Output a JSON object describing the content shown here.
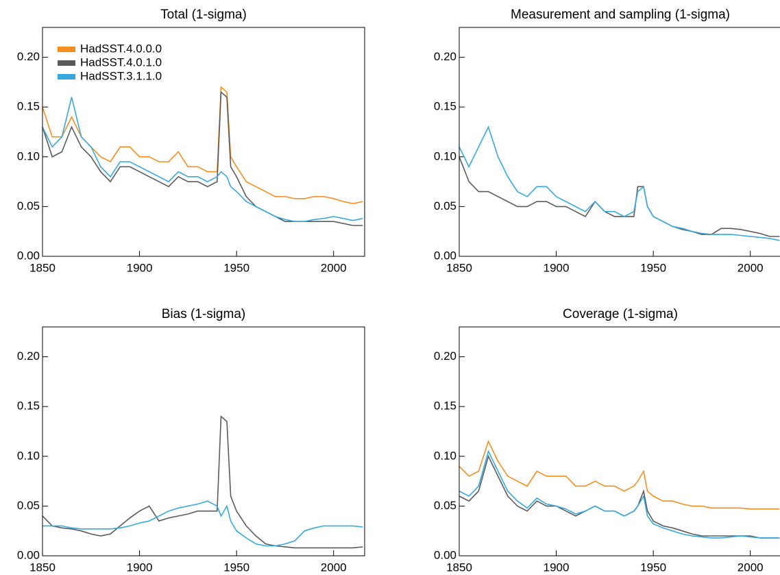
{
  "chart_data": [
    {
      "type": "line",
      "title": "Total (1-sigma)",
      "legend": "upper left",
      "x": [
        1850,
        1855,
        1860,
        1865,
        1870,
        1875,
        1880,
        1885,
        1890,
        1895,
        1900,
        1905,
        1910,
        1915,
        1920,
        1925,
        1930,
        1935,
        1940,
        1942,
        1945,
        1947,
        1950,
        1955,
        1960,
        1965,
        1970,
        1975,
        1980,
        1985,
        1990,
        1995,
        2000,
        2005,
        2010,
        2015
      ],
      "xlim": [
        1850,
        2016
      ],
      "xticks": [
        1850,
        1900,
        1950,
        2000
      ],
      "ylim": [
        0,
        0.23
      ],
      "yticks": [
        {
          "value": 0,
          "label": "0.00"
        },
        {
          "value": 0.05,
          "label": "0.05"
        },
        {
          "value": 0.1,
          "label": "0.10"
        },
        {
          "value": 0.15,
          "label": "0.15"
        },
        {
          "value": 0.2,
          "label": "0.20"
        }
      ],
      "series": [
        {
          "name": "HadSST.4.0.0.0",
          "color": "#f78d1e",
          "values": [
            0.15,
            0.12,
            0.12,
            0.14,
            0.12,
            0.11,
            0.1,
            0.095,
            0.11,
            0.11,
            0.1,
            0.1,
            0.095,
            0.095,
            0.105,
            0.09,
            0.09,
            0.085,
            0.085,
            0.17,
            0.165,
            0.1,
            0.09,
            0.075,
            0.07,
            0.065,
            0.06,
            0.06,
            0.058,
            0.058,
            0.06,
            0.06,
            0.058,
            0.055,
            0.053,
            0.055
          ]
        },
        {
          "name": "HadSST.4.0.1.0",
          "color": "#5a5a5a",
          "values": [
            0.13,
            0.1,
            0.105,
            0.13,
            0.11,
            0.1,
            0.085,
            0.075,
            0.09,
            0.09,
            0.085,
            0.08,
            0.075,
            0.07,
            0.08,
            0.075,
            0.075,
            0.07,
            0.075,
            0.165,
            0.16,
            0.09,
            0.08,
            0.06,
            0.05,
            0.045,
            0.04,
            0.035,
            0.035,
            0.035,
            0.035,
            0.035,
            0.035,
            0.033,
            0.031,
            0.031
          ]
        },
        {
          "name": "HadSST.3.1.1.0",
          "color": "#35a9df",
          "values": [
            0.13,
            0.11,
            0.12,
            0.16,
            0.12,
            0.11,
            0.09,
            0.08,
            0.095,
            0.095,
            0.09,
            0.085,
            0.08,
            0.075,
            0.085,
            0.08,
            0.08,
            0.075,
            0.08,
            0.085,
            0.08,
            0.07,
            0.065,
            0.055,
            0.05,
            0.045,
            0.04,
            0.037,
            0.035,
            0.035,
            0.037,
            0.038,
            0.04,
            0.038,
            0.036,
            0.038
          ]
        }
      ]
    },
    {
      "type": "line",
      "title": "Measurement and sampling (1-sigma)",
      "x": [
        1850,
        1855,
        1860,
        1865,
        1870,
        1875,
        1880,
        1885,
        1890,
        1895,
        1900,
        1905,
        1910,
        1915,
        1920,
        1925,
        1930,
        1935,
        1940,
        1942,
        1945,
        1947,
        1950,
        1955,
        1960,
        1965,
        1970,
        1975,
        1980,
        1985,
        1990,
        1995,
        2000,
        2005,
        2010,
        2015
      ],
      "xlim": [
        1850,
        2016
      ],
      "xticks": [
        1850,
        1900,
        1950,
        2000
      ],
      "ylim": [
        0,
        0.23
      ],
      "yticks": [
        {
          "value": 0,
          "label": "0.00"
        },
        {
          "value": 0.05,
          "label": "0.05"
        },
        {
          "value": 0.1,
          "label": "0.10"
        },
        {
          "value": 0.15,
          "label": "0.15"
        },
        {
          "value": 0.2,
          "label": "0.20"
        }
      ],
      "series": [
        {
          "color": "#5a5a5a",
          "values": [
            0.1,
            0.075,
            0.065,
            0.065,
            0.06,
            0.055,
            0.05,
            0.05,
            0.055,
            0.055,
            0.05,
            0.05,
            0.045,
            0.04,
            0.055,
            0.045,
            0.04,
            0.04,
            0.04,
            0.07,
            0.07,
            0.05,
            0.04,
            0.035,
            0.03,
            0.027,
            0.025,
            0.022,
            0.022,
            0.028,
            0.028,
            0.027,
            0.025,
            0.023,
            0.02,
            0.02
          ]
        },
        {
          "color": "#35a9df",
          "values": [
            0.11,
            0.09,
            0.11,
            0.13,
            0.1,
            0.08,
            0.065,
            0.06,
            0.07,
            0.07,
            0.06,
            0.055,
            0.05,
            0.045,
            0.055,
            0.045,
            0.045,
            0.04,
            0.045,
            0.065,
            0.07,
            0.05,
            0.04,
            0.035,
            0.03,
            0.028,
            0.025,
            0.023,
            0.022,
            0.022,
            0.022,
            0.021,
            0.02,
            0.019,
            0.018,
            0.016
          ]
        }
      ]
    },
    {
      "type": "line",
      "title": "Bias (1-sigma)",
      "x": [
        1850,
        1855,
        1860,
        1865,
        1870,
        1875,
        1880,
        1885,
        1890,
        1895,
        1900,
        1905,
        1910,
        1915,
        1920,
        1925,
        1930,
        1935,
        1940,
        1942,
        1945,
        1947,
        1950,
        1955,
        1960,
        1965,
        1970,
        1975,
        1980,
        1985,
        1990,
        1995,
        2000,
        2005,
        2010,
        2015
      ],
      "xlim": [
        1850,
        2016
      ],
      "xticks": [
        1850,
        1900,
        1950,
        2000
      ],
      "ylim": [
        0,
        0.23
      ],
      "yticks": [
        {
          "value": 0,
          "label": "0.00"
        },
        {
          "value": 0.05,
          "label": "0.05"
        },
        {
          "value": 0.1,
          "label": "0.10"
        },
        {
          "value": 0.15,
          "label": "0.15"
        },
        {
          "value": 0.2,
          "label": "0.20"
        }
      ],
      "series": [
        {
          "color": "#5a5a5a",
          "values": [
            0.04,
            0.03,
            0.028,
            0.027,
            0.025,
            0.022,
            0.02,
            0.022,
            0.03,
            0.038,
            0.045,
            0.05,
            0.035,
            0.038,
            0.04,
            0.042,
            0.045,
            0.045,
            0.045,
            0.14,
            0.135,
            0.06,
            0.045,
            0.03,
            0.02,
            0.012,
            0.01,
            0.009,
            0.008,
            0.008,
            0.008,
            0.008,
            0.008,
            0.008,
            0.008,
            0.009
          ]
        },
        {
          "color": "#35a9df",
          "values": [
            0.03,
            0.03,
            0.03,
            0.028,
            0.027,
            0.027,
            0.027,
            0.027,
            0.028,
            0.03,
            0.033,
            0.035,
            0.04,
            0.045,
            0.048,
            0.05,
            0.052,
            0.055,
            0.05,
            0.04,
            0.05,
            0.035,
            0.025,
            0.018,
            0.012,
            0.01,
            0.01,
            0.012,
            0.015,
            0.025,
            0.028,
            0.03,
            0.03,
            0.03,
            0.03,
            0.029
          ]
        }
      ]
    },
    {
      "type": "line",
      "title": "Coverage (1-sigma)",
      "x": [
        1850,
        1855,
        1860,
        1865,
        1870,
        1875,
        1880,
        1885,
        1890,
        1895,
        1900,
        1905,
        1910,
        1915,
        1920,
        1925,
        1930,
        1935,
        1940,
        1942,
        1945,
        1947,
        1950,
        1955,
        1960,
        1965,
        1970,
        1975,
        1980,
        1985,
        1990,
        1995,
        2000,
        2005,
        2010,
        2015
      ],
      "xlim": [
        1850,
        2016
      ],
      "xticks": [
        1850,
        1900,
        1950,
        2000
      ],
      "ylim": [
        0,
        0.23
      ],
      "yticks": [
        {
          "value": 0,
          "label": "0.00"
        },
        {
          "value": 0.05,
          "label": "0.05"
        },
        {
          "value": 0.1,
          "label": "0.10"
        },
        {
          "value": 0.15,
          "label": "0.15"
        },
        {
          "value": 0.2,
          "label": "0.20"
        }
      ],
      "series": [
        {
          "color": "#f78d1e",
          "values": [
            0.09,
            0.08,
            0.085,
            0.115,
            0.095,
            0.08,
            0.075,
            0.07,
            0.085,
            0.08,
            0.08,
            0.08,
            0.07,
            0.07,
            0.075,
            0.07,
            0.07,
            0.065,
            0.07,
            0.075,
            0.085,
            0.065,
            0.06,
            0.055,
            0.055,
            0.052,
            0.05,
            0.05,
            0.048,
            0.048,
            0.048,
            0.048,
            0.047,
            0.047,
            0.047,
            0.047
          ]
        },
        {
          "color": "#5a5a5a",
          "values": [
            0.06,
            0.055,
            0.065,
            0.1,
            0.08,
            0.06,
            0.05,
            0.045,
            0.055,
            0.05,
            0.05,
            0.045,
            0.04,
            0.045,
            0.05,
            0.045,
            0.045,
            0.04,
            0.045,
            0.05,
            0.065,
            0.045,
            0.035,
            0.03,
            0.028,
            0.025,
            0.022,
            0.02,
            0.02,
            0.02,
            0.02,
            0.02,
            0.02,
            0.018,
            0.018,
            0.018
          ]
        },
        {
          "color": "#35a9df",
          "values": [
            0.065,
            0.06,
            0.07,
            0.105,
            0.085,
            0.065,
            0.055,
            0.048,
            0.058,
            0.052,
            0.05,
            0.047,
            0.042,
            0.045,
            0.05,
            0.045,
            0.045,
            0.04,
            0.045,
            0.05,
            0.06,
            0.04,
            0.032,
            0.028,
            0.025,
            0.022,
            0.02,
            0.019,
            0.018,
            0.018,
            0.019,
            0.02,
            0.019,
            0.018,
            0.018,
            0.018
          ]
        }
      ]
    }
  ]
}
